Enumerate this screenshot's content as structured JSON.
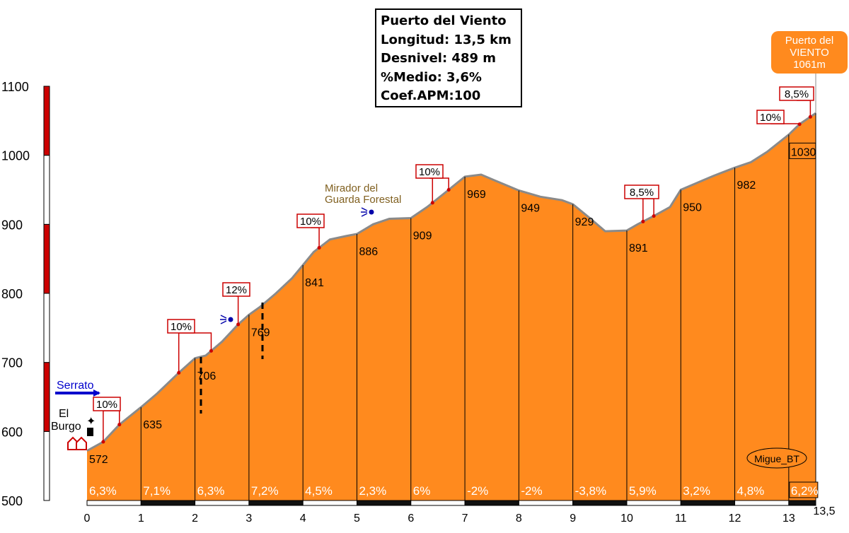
{
  "info": {
    "name": "Puerto del Viento",
    "length": "Longitud: 13,5 km",
    "drop": "Desnivel: 489 m",
    "avg": "%Medio: 3,6%",
    "coef": "Coef.APM:100"
  },
  "summit": {
    "line1": "Puerto del",
    "line2": "VIENTO",
    "line3": "1061m"
  },
  "start": {
    "town_line1": "El",
    "town_line2": "Burgo",
    "direction_label": "Serrato",
    "direction_arrow_color": "#0000cc"
  },
  "poi": {
    "mirador_line1": "Mirador del",
    "mirador_line2": "Guarda Forestal",
    "mirador_color": "#806020"
  },
  "signature": "Migue_BT",
  "colors": {
    "fill": "#ff8a1e",
    "outline": "#8a8a8a",
    "red": "#cc0000"
  },
  "chart_data": {
    "type": "area",
    "x": [
      0,
      0.3,
      0.6,
      1,
      1.3,
      1.7,
      2,
      2.2,
      2.5,
      2.8,
      3,
      3.2,
      3.5,
      3.8,
      4,
      4.2,
      4.5,
      4.8,
      5,
      5.3,
      5.6,
      6,
      6.3,
      6.7,
      7,
      7.3,
      7.6,
      8,
      8.4,
      8.8,
      9,
      9.3,
      9.6,
      10,
      10.2,
      10.5,
      10.8,
      11,
      11.3,
      11.6,
      12,
      12.3,
      12.6,
      13,
      13.2,
      13.5
    ],
    "y": [
      572,
      585,
      610,
      635,
      655,
      685,
      706,
      710,
      730,
      755,
      769,
      780,
      800,
      822,
      841,
      860,
      878,
      883,
      886,
      900,
      908,
      909,
      925,
      950,
      969,
      972,
      962,
      949,
      940,
      935,
      929,
      910,
      890,
      891,
      900,
      912,
      925,
      950,
      960,
      970,
      982,
      990,
      1005,
      1030,
      1045,
      1061
    ],
    "km_labels": [
      "0",
      "1",
      "2",
      "3",
      "4",
      "5",
      "6",
      "7",
      "8",
      "9",
      "10",
      "11",
      "12",
      "13",
      "13,5"
    ],
    "km_altitudes": [
      {
        "km": 0,
        "label": "572"
      },
      {
        "km": 1,
        "label": "635"
      },
      {
        "km": 2,
        "label": "706"
      },
      {
        "km": 3,
        "label": "769"
      },
      {
        "km": 4,
        "label": "841"
      },
      {
        "km": 5,
        "label": "886"
      },
      {
        "km": 6,
        "label": "909"
      },
      {
        "km": 7,
        "label": "969"
      },
      {
        "km": 8,
        "label": "949"
      },
      {
        "km": 9,
        "label": "929"
      },
      {
        "km": 10,
        "label": "891"
      },
      {
        "km": 11,
        "label": "950"
      },
      {
        "km": 12,
        "label": "982"
      },
      {
        "km": 13,
        "label": "1030"
      }
    ],
    "segment_gradients": [
      "6,3%",
      "7,1%",
      "6,3%",
      "7,2%",
      "4,5%",
      "2,3%",
      "6%",
      "-2%",
      "-2%",
      "-3,8%",
      "5,9%",
      "3,2%",
      "4,8%",
      "6,2%"
    ],
    "max_gradients": [
      {
        "km_start": 0.3,
        "km_end": 0.6,
        "label": "10%"
      },
      {
        "km_start": 1.7,
        "km_end": 2.3,
        "label": "10%"
      },
      {
        "km_start": 2.8,
        "km_end": 2.8,
        "label": "12%"
      },
      {
        "km_start": 4.3,
        "km_end": 4.3,
        "label": "10%"
      },
      {
        "km_start": 6.4,
        "km_end": 6.7,
        "label": "10%"
      },
      {
        "km_start": 10.3,
        "km_end": 10.5,
        "label": "8,5%"
      },
      {
        "km_start": 13.2,
        "km_end": 13.2,
        "label": "10%"
      },
      {
        "km_start": 13.4,
        "km_end": 13.4,
        "label": "8,5%"
      }
    ],
    "y_ticks": [
      "1100",
      "1000",
      "900",
      "800",
      "700",
      "600",
      "500"
    ],
    "ylim": [
      500,
      1100
    ],
    "xlim": [
      0,
      13.5
    ]
  }
}
